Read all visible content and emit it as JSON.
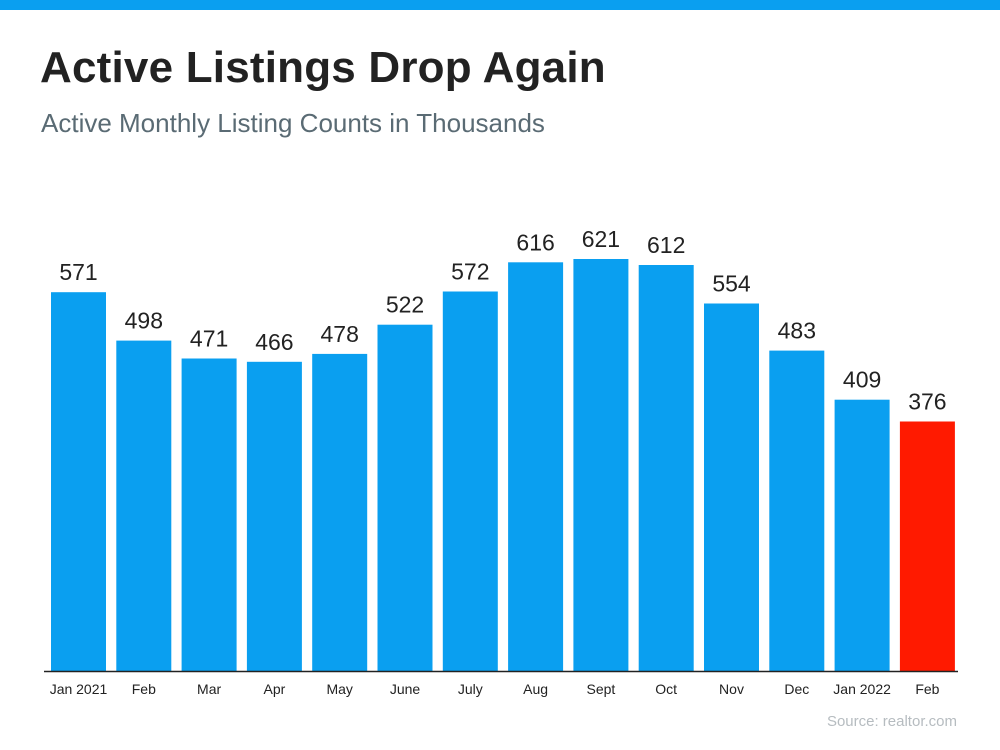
{
  "header": {
    "title": "Active Listings Drop Again",
    "subtitle": "Active Monthly Listing Counts in Thousands"
  },
  "footer": {
    "source": "Source: realtor.com"
  },
  "colors": {
    "bar": "#0a9ff0",
    "highlight": "#ff1a00",
    "axis": "#222222",
    "stripe": "#0a9ff0"
  },
  "chart_data": {
    "type": "bar",
    "title": "Active Listings Drop Again",
    "subtitle": "Active Monthly Listing Counts in Thousands",
    "xlabel": "",
    "ylabel": "",
    "categories": [
      "Jan 2021",
      "Feb",
      "Mar",
      "Apr",
      "May",
      "June",
      "July",
      "Aug",
      "Sept",
      "Oct",
      "Nov",
      "Dec",
      "Jan 2022",
      "Feb"
    ],
    "values": [
      571,
      498,
      471,
      466,
      478,
      522,
      572,
      616,
      621,
      612,
      554,
      483,
      409,
      376
    ],
    "data_labels": [
      "571",
      "498",
      "471",
      "466",
      "478",
      "522",
      "572",
      "616",
      "621",
      "612",
      "554",
      "483",
      "409",
      "376"
    ],
    "highlight_index": 13,
    "ylim": [
      0,
      621
    ],
    "grid": false,
    "legend": "none"
  }
}
